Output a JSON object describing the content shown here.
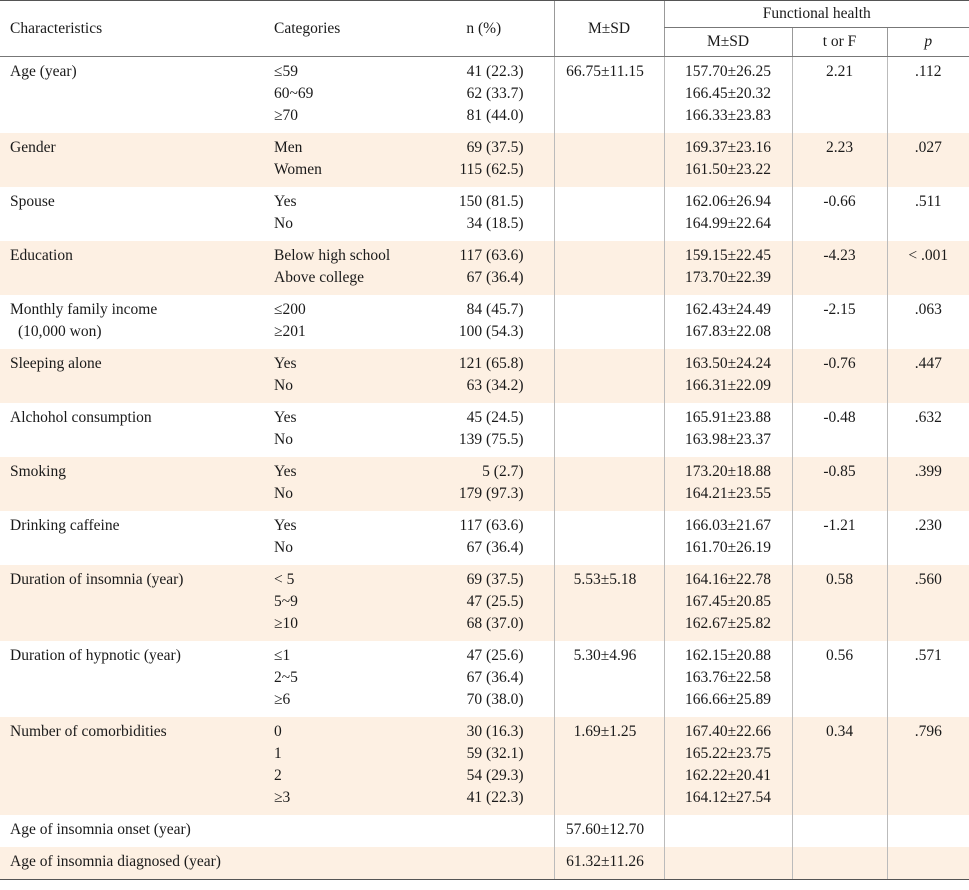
{
  "header": {
    "characteristics": "Characteristics",
    "categories": "Categories",
    "n_pct": "n (%)",
    "m_sd": "M±SD",
    "functional_health": "Functional health",
    "fh_m_sd": "M±SD",
    "t_or_f": "t or F",
    "p": "p"
  },
  "rows": [
    {
      "char": "Age (year)",
      "char2": "",
      "cats": [
        "≤59",
        "60~69",
        "≥70"
      ],
      "n": [
        "41 (22.3)",
        "62 (33.7)",
        "81 (44.0)"
      ],
      "msd": "66.75±11.15",
      "fmsd": [
        "157.70±26.25",
        "166.45±20.32",
        "166.33±23.83"
      ],
      "t": "2.21",
      "p": ".112"
    },
    {
      "char": "Gender",
      "char2": "",
      "cats": [
        "Men",
        "Women"
      ],
      "n": [
        "69 (37.5)",
        "115 (62.5)"
      ],
      "msd": "",
      "fmsd": [
        "169.37±23.16",
        "161.50±23.22"
      ],
      "t": "2.23",
      "p": ".027"
    },
    {
      "char": "Spouse",
      "char2": "",
      "cats": [
        "Yes",
        "No"
      ],
      "n": [
        "150 (81.5)",
        "34 (18.5)"
      ],
      "msd": "",
      "fmsd": [
        "162.06±26.94",
        "164.99±22.64"
      ],
      "t": "-0.66",
      "p": ".511"
    },
    {
      "char": "Education",
      "char2": "",
      "cats": [
        "Below high school",
        "Above college"
      ],
      "n": [
        "117 (63.6)",
        "67 (36.4)"
      ],
      "msd": "",
      "fmsd": [
        "159.15±22.45",
        "173.70±22.39"
      ],
      "t": "-4.23",
      "p": "< .001"
    },
    {
      "char": "Monthly family income",
      "char2": "(10,000 won)",
      "cats": [
        "≤200",
        "≥201"
      ],
      "n": [
        "84 (45.7)",
        "100 (54.3)"
      ],
      "msd": "",
      "fmsd": [
        "162.43±24.49",
        "167.83±22.08"
      ],
      "t": "-2.15",
      "p": ".063"
    },
    {
      "char": "Sleeping alone",
      "char2": "",
      "cats": [
        "Yes",
        "No"
      ],
      "n": [
        "121 (65.8)",
        "63 (34.2)"
      ],
      "msd": "",
      "fmsd": [
        "163.50±24.24",
        "166.31±22.09"
      ],
      "t": "-0.76",
      "p": ".447"
    },
    {
      "char": "Alchohol consumption",
      "char2": "",
      "cats": [
        "Yes",
        "No"
      ],
      "n": [
        "45 (24.5)",
        "139 (75.5)"
      ],
      "msd": "",
      "fmsd": [
        "165.91±23.88",
        "163.98±23.37"
      ],
      "t": "-0.48",
      "p": ".632"
    },
    {
      "char": "Smoking",
      "char2": "",
      "cats": [
        "Yes",
        "No"
      ],
      "n": [
        "5 (2.7)",
        "179 (97.3)"
      ],
      "msd": "",
      "fmsd": [
        "173.20±18.88",
        "164.21±23.55"
      ],
      "t": "-0.85",
      "p": ".399"
    },
    {
      "char": "Drinking caffeine",
      "char2": "",
      "cats": [
        "Yes",
        "No"
      ],
      "n": [
        "117 (63.6)",
        "67 (36.4)"
      ],
      "msd": "",
      "fmsd": [
        "166.03±21.67",
        "161.70±26.19"
      ],
      "t": "-1.21",
      "p": ".230"
    },
    {
      "char": "Duration of insomnia (year)",
      "char2": "",
      "cats": [
        "< 5",
        "5~9",
        "≥10"
      ],
      "n": [
        "69 (37.5)",
        "47 (25.5)",
        "68 (37.0)"
      ],
      "msd": "5.53±5.18",
      "fmsd": [
        "164.16±22.78",
        "167.45±20.85",
        "162.67±25.82"
      ],
      "t": "0.58",
      "p": ".560"
    },
    {
      "char": "Duration of hypnotic (year)",
      "char2": "",
      "cats": [
        "≤1",
        "2~5",
        "≥6"
      ],
      "n": [
        "47 (25.6)",
        "67 (36.4)",
        "70 (38.0)"
      ],
      "msd": "5.30±4.96",
      "fmsd": [
        "162.15±20.88",
        "163.76±22.58",
        "166.66±25.89"
      ],
      "t": "0.56",
      "p": ".571"
    },
    {
      "char": "Number of comorbidities",
      "char2": "",
      "cats": [
        "0",
        "1",
        "2",
        "≥3"
      ],
      "n": [
        "30 (16.3)",
        "59 (32.1)",
        "54 (29.3)",
        "41 (22.3)"
      ],
      "msd": "1.69±1.25",
      "fmsd": [
        "167.40±22.66",
        "165.22±23.75",
        "162.22±20.41",
        "164.12±27.54"
      ],
      "t": "0.34",
      "p": ".796"
    },
    {
      "char": "Age of insomnia onset (year)",
      "char2": "",
      "cats": [],
      "n": [],
      "msd": "57.60±12.70",
      "fmsd": [],
      "t": "",
      "p": ""
    },
    {
      "char": "Age of insomnia diagnosed (year)",
      "char2": "",
      "cats": [],
      "n": [],
      "msd": "61.32±11.26",
      "fmsd": [],
      "t": "",
      "p": ""
    }
  ]
}
